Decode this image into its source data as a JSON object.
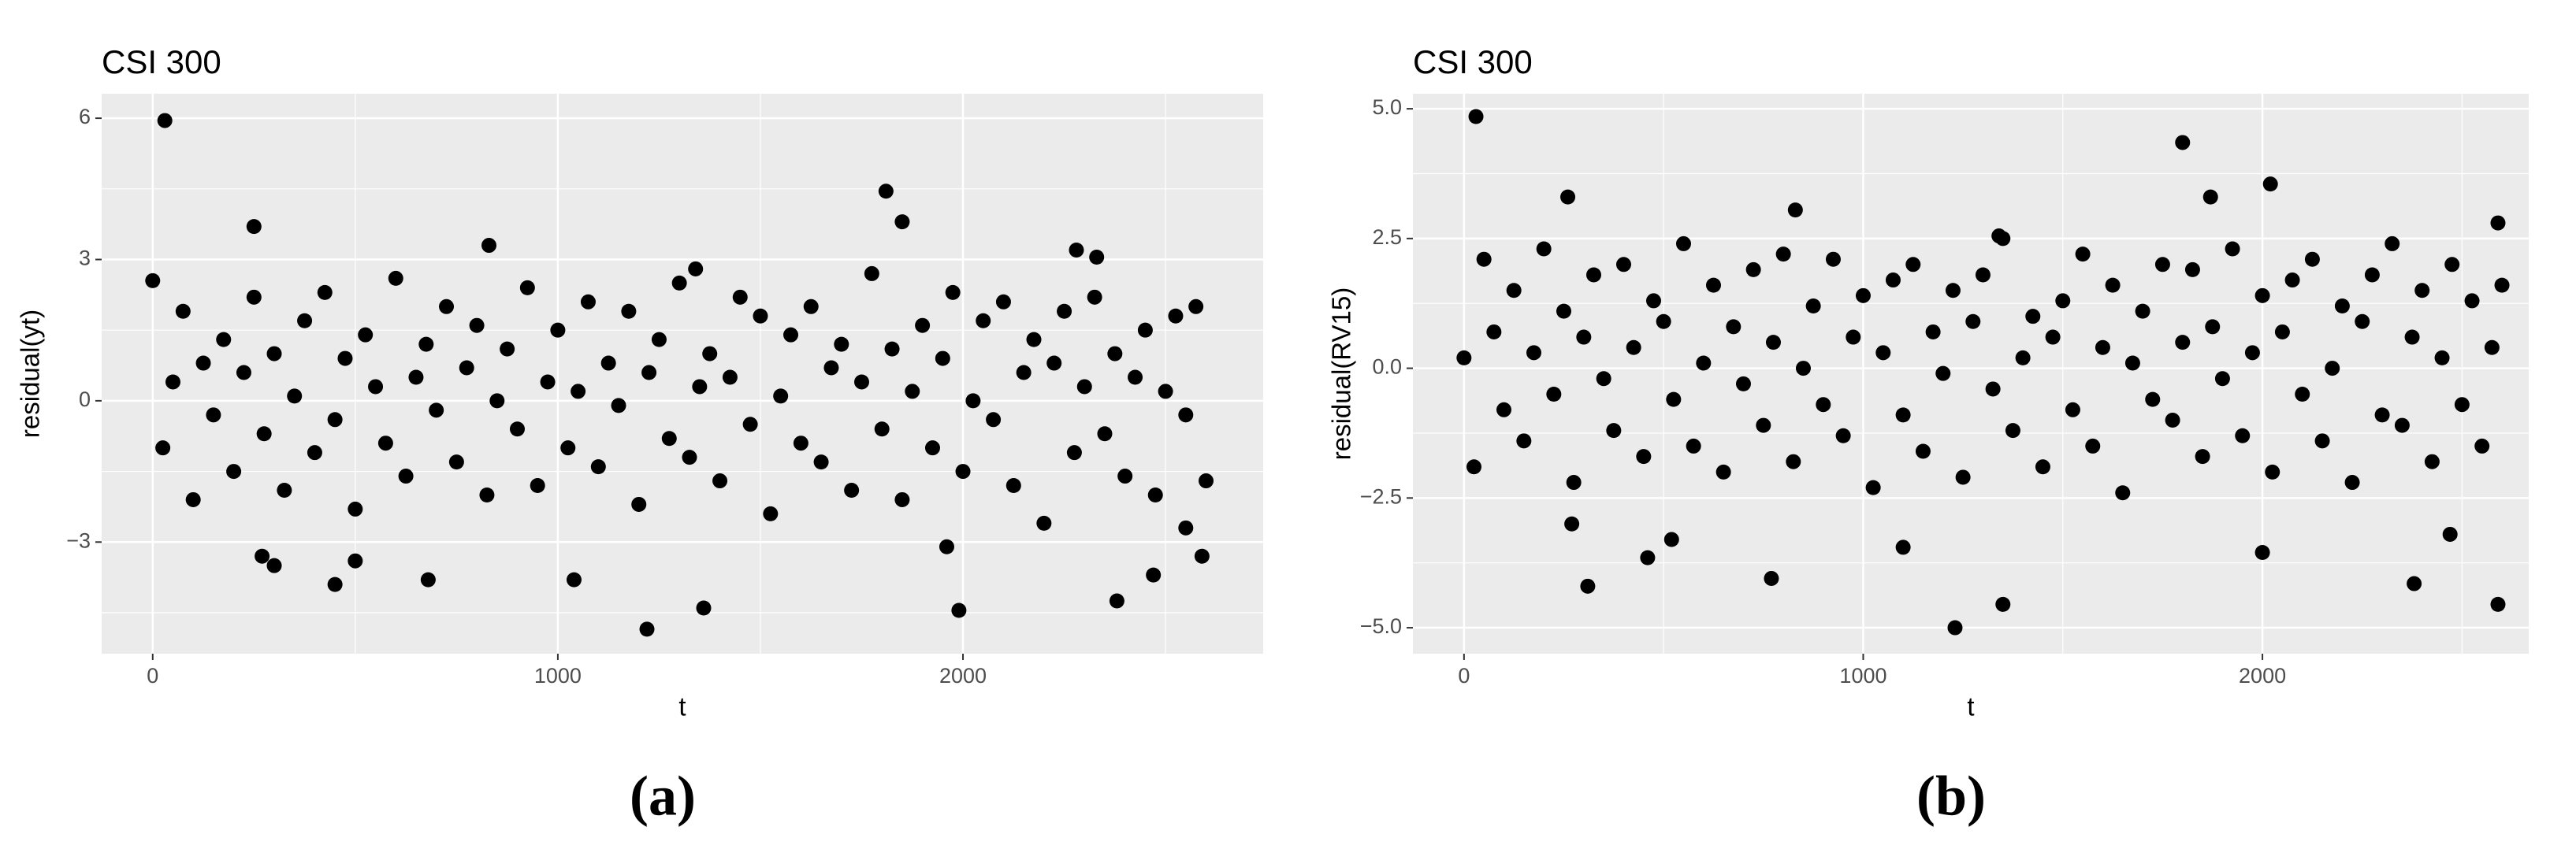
{
  "chart_data": [
    {
      "type": "scatter",
      "title": "CSI 300",
      "caption": "(a)",
      "xlabel": "t",
      "ylabel": "residual(yt)",
      "color": "#000000",
      "xlim": [
        -126,
        2741
      ],
      "ylim": [
        -5.37,
        6.52
      ],
      "xticks": [
        0,
        1000,
        2000
      ],
      "yticks": [
        {
          "value": -3,
          "label": "−3"
        },
        0,
        3,
        6
      ],
      "x": [
        0,
        25,
        50,
        75,
        100,
        125,
        150,
        175,
        200,
        225,
        250,
        275,
        300,
        325,
        350,
        375,
        400,
        425,
        450,
        475,
        500,
        525,
        550,
        575,
        600,
        625,
        650,
        675,
        700,
        725,
        750,
        775,
        800,
        825,
        850,
        875,
        900,
        925,
        950,
        975,
        1000,
        1025,
        1050,
        1075,
        1100,
        1125,
        1150,
        1175,
        1200,
        1225,
        1250,
        1275,
        1300,
        1325,
        1350,
        1375,
        1400,
        1425,
        1450,
        1475,
        1500,
        1525,
        1550,
        1575,
        1600,
        1625,
        1650,
        1675,
        1700,
        1725,
        1750,
        1775,
        1800,
        1825,
        1850,
        1875,
        1900,
        1925,
        1950,
        1975,
        2000,
        2025,
        2050,
        2075,
        2100,
        2125,
        2150,
        2175,
        2200,
        2225,
        2250,
        2275,
        2300,
        2325,
        2350,
        2375,
        2400,
        2425,
        2450,
        2475,
        2500,
        2525,
        2550,
        2575,
        2600,
        30,
        250,
        830,
        1810,
        1850,
        1340,
        2280,
        2330,
        450,
        680,
        1040,
        1220,
        1360,
        1990,
        2380,
        2470,
        2590,
        270,
        300,
        500,
        1960,
        2550
      ],
      "y": [
        2.55,
        -1.0,
        0.4,
        1.9,
        -2.1,
        0.8,
        -0.3,
        1.3,
        -1.5,
        0.6,
        2.2,
        -0.7,
        1.0,
        -1.9,
        0.1,
        1.7,
        -1.1,
        2.3,
        -0.4,
        0.9,
        -2.3,
        1.4,
        0.3,
        -0.9,
        2.6,
        -1.6,
        0.5,
        1.2,
        -0.2,
        2.0,
        -1.3,
        0.7,
        1.6,
        -2.0,
        0.0,
        1.1,
        -0.6,
        2.4,
        -1.8,
        0.4,
        1.5,
        -1.0,
        0.2,
        2.1,
        -1.4,
        0.8,
        -0.1,
        1.9,
        -2.2,
        0.6,
        1.3,
        -0.8,
        2.5,
        -1.2,
        0.3,
        1.0,
        -1.7,
        0.5,
        2.2,
        -0.5,
        1.8,
        -2.4,
        0.1,
        1.4,
        -0.9,
        2.0,
        -1.3,
        0.7,
        1.2,
        -1.9,
        0.4,
        2.7,
        -0.6,
        1.1,
        -2.1,
        0.2,
        1.6,
        -1.0,
        0.9,
        2.3,
        -1.5,
        0.0,
        1.7,
        -0.4,
        2.1,
        -1.8,
        0.6,
        1.3,
        -2.6,
        0.8,
        1.9,
        -1.1,
        0.3,
        2.2,
        -0.7,
        1.0,
        -1.6,
        0.5,
        1.5,
        -2.0,
        0.2,
        1.8,
        -0.3,
        2.0,
        -1.7,
        5.95,
        3.7,
        3.3,
        4.45,
        3.8,
        2.8,
        3.2,
        3.05,
        -3.9,
        -3.8,
        -3.8,
        -4.85,
        -4.4,
        -4.45,
        -4.25,
        -3.7,
        -3.3,
        -3.3,
        -3.5,
        -3.4,
        -3.1,
        -2.7
      ]
    },
    {
      "type": "scatter",
      "title": "CSI 300",
      "caption": "(b)",
      "xlabel": "t",
      "ylabel": "residual(RV15)",
      "color": "#000000",
      "xlim": [
        -128,
        2667
      ],
      "ylim": [
        -5.5,
        5.29
      ],
      "xticks": [
        0,
        1000,
        2000
      ],
      "yticks": [
        {
          "value": -5,
          "label": "−5.0"
        },
        {
          "value": -2.5,
          "label": "−2.5"
        },
        {
          "value": 0,
          "label": "0.0"
        },
        {
          "value": 2.5,
          "label": "2.5"
        },
        {
          "value": 5,
          "label": "5.0"
        }
      ],
      "x": [
        0,
        25,
        50,
        75,
        100,
        125,
        150,
        175,
        200,
        225,
        250,
        275,
        300,
        325,
        350,
        375,
        400,
        425,
        450,
        475,
        500,
        525,
        550,
        575,
        600,
        625,
        650,
        675,
        700,
        725,
        750,
        775,
        800,
        825,
        850,
        875,
        900,
        925,
        950,
        975,
        1000,
        1025,
        1050,
        1075,
        1100,
        1125,
        1150,
        1175,
        1200,
        1225,
        1250,
        1275,
        1300,
        1325,
        1350,
        1375,
        1400,
        1425,
        1450,
        1475,
        1500,
        1525,
        1550,
        1575,
        1600,
        1625,
        1650,
        1675,
        1700,
        1725,
        1750,
        1775,
        1800,
        1825,
        1850,
        1875,
        1900,
        1925,
        1950,
        1975,
        2000,
        2025,
        2050,
        2075,
        2100,
        2125,
        2150,
        2175,
        2200,
        2225,
        2250,
        2275,
        2300,
        2325,
        2350,
        2375,
        2400,
        2425,
        2450,
        2475,
        2500,
        2525,
        2550,
        2575,
        2600,
        30,
        260,
        830,
        1800,
        2020,
        2590,
        310,
        460,
        770,
        1230,
        1350,
        2380,
        2590,
        2000,
        1100,
        270,
        520,
        2470,
        1870,
        1340
      ],
      "y": [
        0.2,
        -1.9,
        2.1,
        0.7,
        -0.8,
        1.5,
        -1.4,
        0.3,
        2.3,
        -0.5,
        1.1,
        -2.2,
        0.6,
        1.8,
        -0.2,
        -1.2,
        2.0,
        0.4,
        -1.7,
        1.3,
        0.9,
        -0.6,
        2.4,
        -1.5,
        0.1,
        1.6,
        -2.0,
        0.8,
        -0.3,
        1.9,
        -1.1,
        0.5,
        2.2,
        -1.8,
        0.0,
        1.2,
        -0.7,
        2.1,
        -1.3,
        0.6,
        1.4,
        -2.3,
        0.3,
        1.7,
        -0.9,
        2.0,
        -1.6,
        0.7,
        -0.1,
        1.5,
        -2.1,
        0.9,
        1.8,
        -0.4,
        2.5,
        -1.2,
        0.2,
        1.0,
        -1.9,
        0.6,
        1.3,
        -0.8,
        2.2,
        -1.5,
        0.4,
        1.6,
        -2.4,
        0.1,
        1.1,
        -0.6,
        2.0,
        -1.0,
        0.5,
        1.9,
        -1.7,
        0.8,
        -0.2,
        2.3,
        -1.3,
        0.3,
        1.4,
        -2.0,
        0.7,
        1.7,
        -0.5,
        2.1,
        -1.4,
        0.0,
        1.2,
        -2.2,
        0.9,
        1.8,
        -0.9,
        2.4,
        -1.1,
        0.6,
        1.5,
        -1.8,
        0.2,
        2.0,
        -0.7,
        1.3,
        -1.5,
        0.4,
        1.6,
        4.85,
        3.3,
        3.05,
        4.35,
        3.55,
        2.8,
        -4.2,
        -3.65,
        -4.05,
        -5.0,
        -4.55,
        -4.15,
        -4.55,
        -3.55,
        -3.45,
        -3.0,
        -3.3,
        -3.2,
        3.3,
        2.55
      ]
    }
  ]
}
